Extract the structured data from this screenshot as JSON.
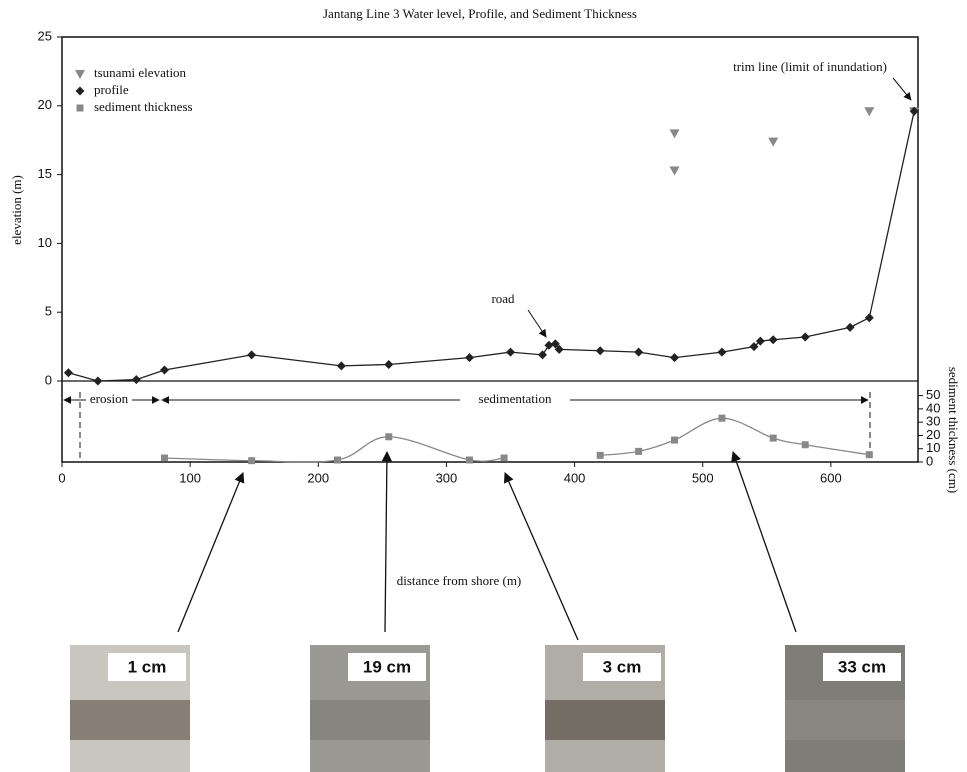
{
  "chart_data": {
    "type": "line",
    "title": "Jantang Line 3 Water level, Profile, and Sediment Thickness",
    "x_label": "distance from shore (m)",
    "y_label": "elevation (m)",
    "y2_label": "sediment thickness (cm)",
    "xlim": [
      0,
      668
    ],
    "xticks": [
      0,
      100,
      200,
      300,
      400,
      500,
      600
    ],
    "ylim": [
      0,
      25
    ],
    "yticks": [
      0,
      5,
      10,
      15,
      20,
      25
    ],
    "y2lim": [
      0,
      61
    ],
    "y2ticks": [
      0,
      10,
      20,
      30,
      40,
      50
    ],
    "legend": "upper left",
    "series": [
      {
        "name": "tsunami elevation",
        "color": "#888888",
        "marker": "triangle",
        "x": [
          478,
          478,
          555,
          630,
          665
        ],
        "values": [
          18,
          15.3,
          17.4,
          19.6,
          19.6
        ]
      },
      {
        "name": "profile",
        "color": "#222222",
        "marker": "diamond",
        "x": [
          5,
          28,
          58,
          80,
          148,
          218,
          255,
          318,
          350,
          375,
          380,
          385,
          388,
          420,
          450,
          478,
          515,
          540,
          545,
          555,
          580,
          615,
          630,
          665
        ],
        "values": [
          0.6,
          0,
          0.1,
          0.8,
          1.9,
          1.1,
          1.2,
          1.7,
          2.1,
          1.9,
          2.6,
          2.7,
          2.3,
          2.2,
          2.1,
          1.7,
          2.1,
          2.5,
          2.9,
          3.0,
          3.2,
          3.9,
          4.6,
          19.6
        ]
      },
      {
        "name": "sediment thickness",
        "color": "#888888",
        "marker": "square",
        "axis": "y2",
        "x": [
          80,
          148,
          215,
          255,
          318,
          345,
          null,
          420,
          450,
          478,
          515,
          555,
          580,
          630
        ],
        "values": [
          3,
          1,
          1.5,
          19,
          1.5,
          3,
          null,
          5,
          8,
          16.5,
          33,
          18,
          13,
          5.5
        ]
      }
    ],
    "annotations": {
      "road": "road",
      "trim_line": "trim line (limit of inundation)",
      "erosion": "erosion",
      "sedimentation": "sedimentation"
    }
  },
  "photos": [
    {
      "label": "1 cm"
    },
    {
      "label": "19 cm"
    },
    {
      "label": "3 cm"
    },
    {
      "label": "33 cm"
    }
  ]
}
